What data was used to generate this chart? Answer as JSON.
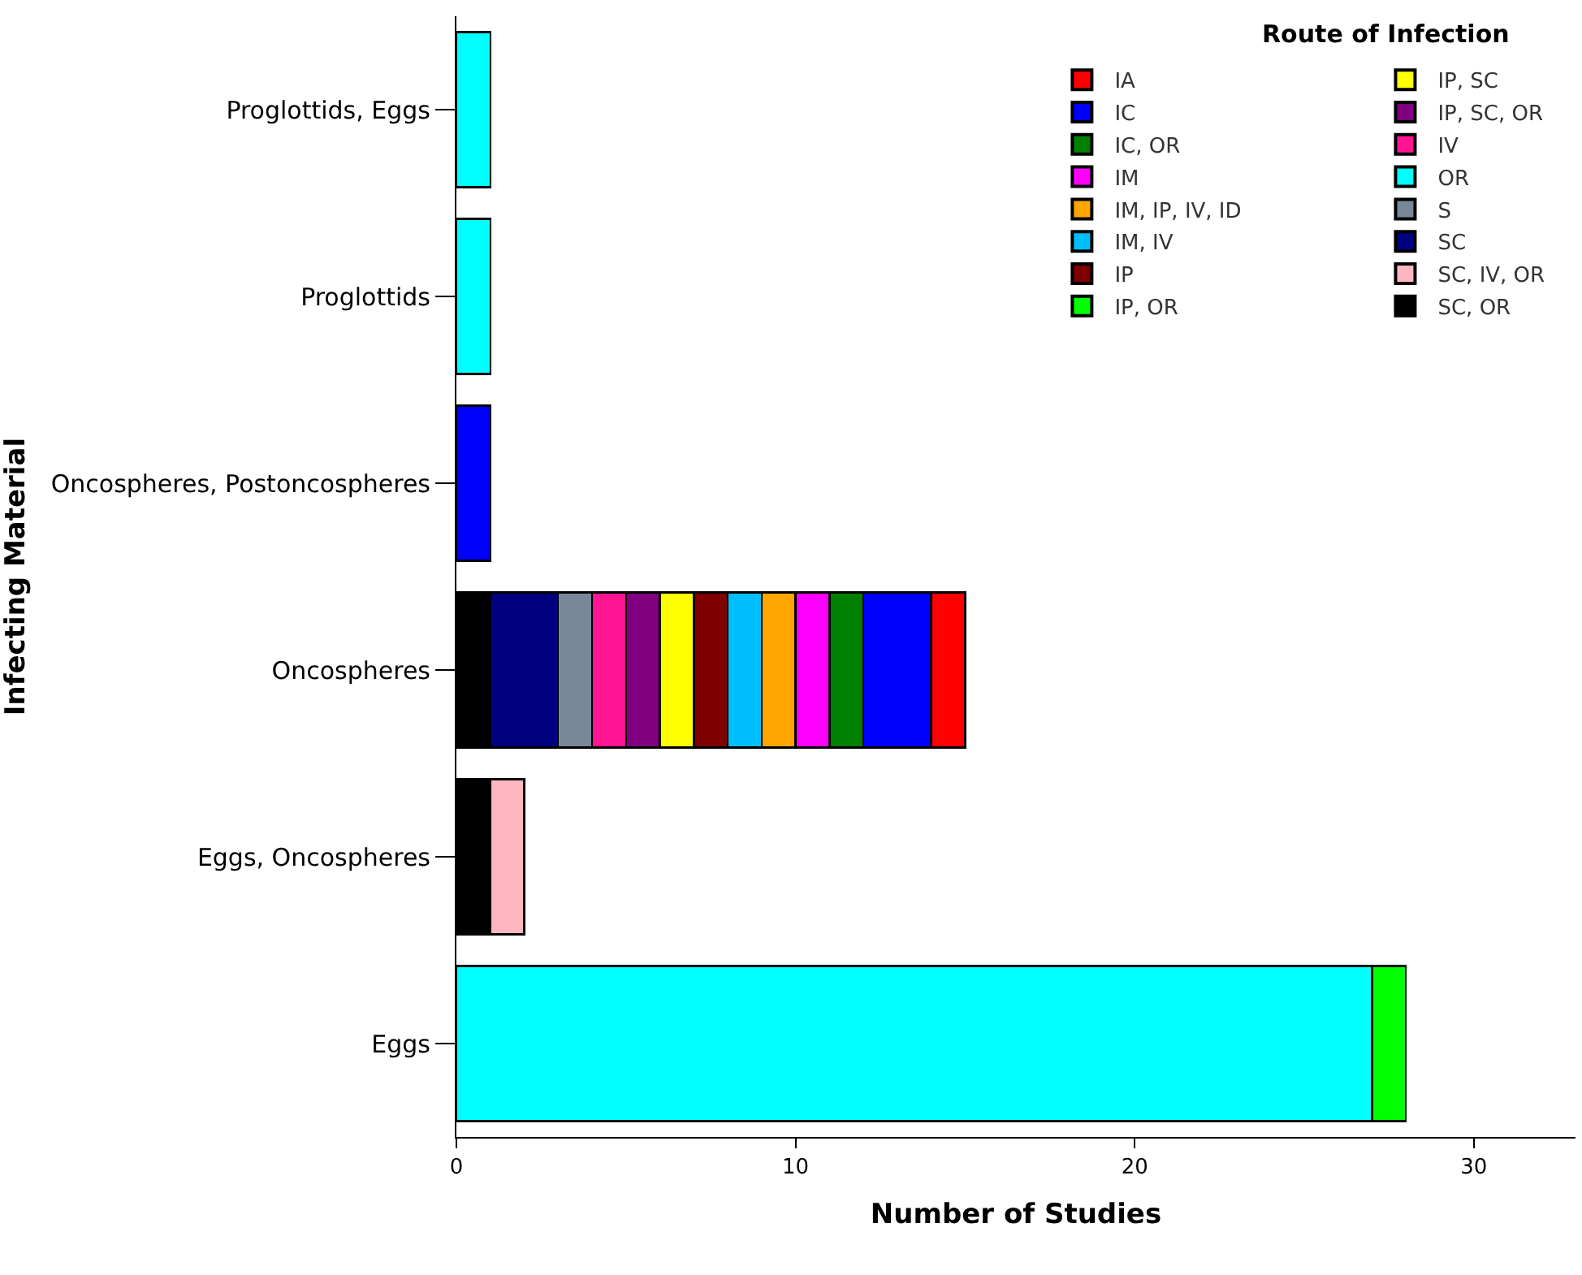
{
  "chart_data": {
    "type": "bar",
    "orientation": "horizontal",
    "stacked": true,
    "xlabel": "Number of Studies",
    "ylabel": "Infecting Material",
    "legend_title": "Route of Infection",
    "categories": [
      "Proglottids, Eggs",
      "Proglottids",
      "Oncospheres, Postoncospheres",
      "Oncospheres",
      "Eggs, Oncospheres",
      "Eggs"
    ],
    "xlim": [
      0,
      33
    ],
    "xticks": [
      0,
      10,
      20,
      30
    ],
    "legend": "top right",
    "series": [
      {
        "name": "IA",
        "color": "#ff0000",
        "values": [
          null,
          null,
          null,
          1,
          null,
          null
        ]
      },
      {
        "name": "IC",
        "color": "#0000ff",
        "values": [
          null,
          null,
          1,
          2,
          null,
          null
        ]
      },
      {
        "name": "IC, OR",
        "color": "#008000",
        "values": [
          null,
          null,
          null,
          1,
          null,
          null
        ]
      },
      {
        "name": "IM",
        "color": "#ff00ff",
        "values": [
          null,
          null,
          null,
          1,
          null,
          null
        ]
      },
      {
        "name": "IM, IP, IV, ID",
        "color": "#ffa500",
        "values": [
          null,
          null,
          null,
          1,
          null,
          null
        ]
      },
      {
        "name": "IM, IV",
        "color": "#00bfff",
        "values": [
          null,
          null,
          null,
          1,
          null,
          null
        ]
      },
      {
        "name": "IP",
        "color": "#800000",
        "values": [
          null,
          null,
          null,
          1,
          null,
          null
        ]
      },
      {
        "name": "IP, OR",
        "color": "#00ff00",
        "values": [
          null,
          null,
          null,
          null,
          null,
          1
        ]
      },
      {
        "name": "IP, SC",
        "color": "#ffff00",
        "values": [
          null,
          null,
          null,
          1,
          null,
          null
        ]
      },
      {
        "name": "IP, SC, OR",
        "color": "#800080",
        "values": [
          null,
          null,
          null,
          1,
          null,
          null
        ]
      },
      {
        "name": "IV",
        "color": "#ff1493",
        "values": [
          null,
          null,
          null,
          1,
          null,
          null
        ]
      },
      {
        "name": "OR",
        "color": "#00ffff",
        "values": [
          1,
          1,
          null,
          null,
          null,
          27
        ]
      },
      {
        "name": "S",
        "color": "#778899",
        "values": [
          null,
          null,
          null,
          1,
          null,
          null
        ]
      },
      {
        "name": "SC",
        "color": "#000080",
        "values": [
          null,
          null,
          null,
          2,
          null,
          null
        ]
      },
      {
        "name": "SC, IV, OR",
        "color": "#ffb6c1",
        "values": [
          null,
          null,
          null,
          null,
          1,
          null
        ]
      },
      {
        "name": "SC, OR",
        "color": "#000000",
        "values": [
          null,
          null,
          null,
          1,
          1,
          null
        ]
      }
    ]
  }
}
